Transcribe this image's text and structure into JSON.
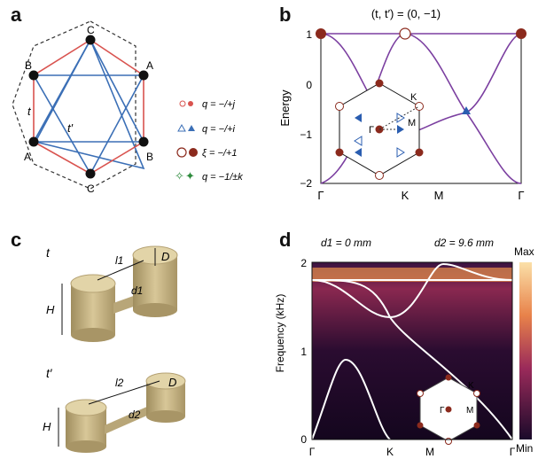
{
  "panels": {
    "a": {
      "label": "a",
      "sites": {
        "top": "C",
        "upper_left": "B",
        "upper_right": "A",
        "lower_left": "A",
        "lower_right": "B",
        "bottom": "C"
      },
      "hop_labels": {
        "t": "t",
        "tp": "t′"
      },
      "legend": [
        {
          "symbol": "circle-small",
          "text": "q = −/+j"
        },
        {
          "symbol": "triangle",
          "text": "q = −/+i"
        },
        {
          "symbol": "circle-large",
          "text": "ξ = −/+1"
        },
        {
          "symbol": "star",
          "text": "q = −1/±k"
        }
      ],
      "colors": {
        "nn_bond": "#d9534f",
        "nnn_bond": "#3b6fb6",
        "site": "#111111"
      }
    },
    "b": {
      "label": "b",
      "title": "(t, t′) = (0, −1)",
      "ylabel": "Energy",
      "yticks": [
        "1",
        "0",
        "−1",
        "−2"
      ],
      "xticks": [
        "Γ",
        "K",
        "M",
        "Γ"
      ],
      "inset": {
        "gamma": "Γ",
        "k": "K",
        "m": "M"
      },
      "colors": {
        "band": "#7b3fa0",
        "dot_dark": "#8b2a1d",
        "triangle": "#2a5db0"
      }
    },
    "c": {
      "label": "c",
      "top": {
        "name": "t",
        "l": "l1",
        "d": "d1",
        "D": "D",
        "H": "H"
      },
      "bottom": {
        "name": "t′",
        "l": "l2",
        "d": "d2",
        "D": "D",
        "H": "H"
      }
    },
    "d": {
      "label": "d",
      "d1_text": "d1 = 0 mm",
      "d2_text": "d2 = 9.6 mm",
      "ylabel": "Frequency (kHz)",
      "yticks": [
        "2",
        "1",
        "0"
      ],
      "xticks": [
        "Γ",
        "K",
        "M",
        "Γ"
      ],
      "colorbar": {
        "max": "Max",
        "min": "Min"
      },
      "inset": {
        "gamma": "Γ",
        "k": "K",
        "m": "M"
      }
    }
  },
  "chart_data": [
    {
      "type": "line",
      "panel": "b",
      "title": "(t, t′) = (0, −1)",
      "ylabel": "Energy",
      "x": [
        "Γ",
        "K",
        "M",
        "Γ"
      ],
      "ylim": [
        -2,
        1
      ],
      "series": [
        {
          "values_at_ticks": [
            1,
            1,
            1,
            1
          ]
        },
        {
          "values_at_ticks": [
            1,
            -1,
            -1,
            -2
          ]
        },
        {
          "values_at_ticks": [
            -2,
            1,
            0,
            1
          ]
        }
      ]
    },
    {
      "type": "heatmap",
      "panel": "d",
      "ylabel": "Frequency (kHz)",
      "x": [
        "Γ",
        "K",
        "M",
        "Γ"
      ],
      "ylim": [
        0,
        2
      ]
    }
  ]
}
